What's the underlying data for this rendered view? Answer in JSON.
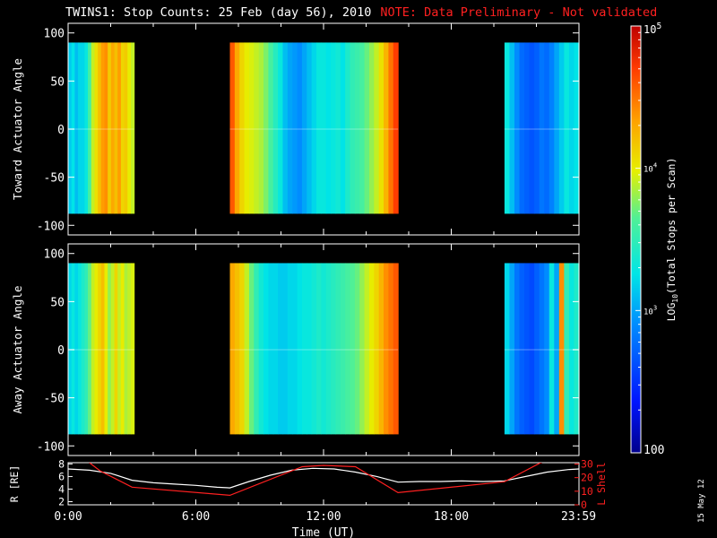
{
  "title": "TWINS1: Stop Counts: 25 Feb (day  56), 2010",
  "note": "NOTE: Data Preliminary - Not validated",
  "stamp": "15 May 12",
  "chart_data": [
    {
      "type": "heatmap",
      "panel": "toward",
      "ylabel": "Toward Actuator Angle",
      "yticks": [
        100,
        50,
        0,
        -50,
        -100
      ],
      "ylim": [
        -110,
        110
      ],
      "angle_range": [
        -88,
        90
      ],
      "xlim_hours": [
        0,
        24
      ],
      "data_windows_hours": [
        [
          0.0,
          3.1
        ],
        [
          7.6,
          15.5
        ],
        [
          20.5,
          24.0
        ]
      ],
      "column_log_counts": [
        3.15,
        3.25,
        3.1,
        3.2,
        3.2,
        3.3,
        3.6,
        3.9,
        4.05,
        4.2,
        4.35,
        4.4,
        4.15,
        4.3,
        4.2,
        4.35,
        4.1,
        4.15,
        4.0,
        3.9,
        4.6,
        4.3,
        4.1,
        4.0,
        3.95,
        3.9,
        3.85,
        3.75,
        3.6,
        3.45,
        3.3,
        3.1,
        3.0,
        2.95,
        2.9,
        3.0,
        3.1,
        3.2,
        3.3,
        3.3,
        3.25,
        3.3,
        3.35,
        3.25,
        3.4,
        3.5,
        3.55,
        3.6,
        3.7,
        3.8,
        3.9,
        4.05,
        4.25,
        4.5,
        4.7,
        3.3,
        3.1,
        2.9,
        2.75,
        2.7,
        2.65,
        2.7,
        2.8,
        2.75,
        2.85,
        3.0,
        3.15,
        3.3,
        3.2,
        3.25
      ]
    },
    {
      "type": "heatmap",
      "panel": "away",
      "ylabel": "Away Actuator Angle",
      "yticks": [
        100,
        50,
        0,
        -50,
        -100
      ],
      "ylim": [
        -110,
        110
      ],
      "angle_range": [
        -88,
        90
      ],
      "xlim_hours": [
        0,
        24
      ],
      "data_windows_hours": [
        [
          0.0,
          3.1
        ],
        [
          7.6,
          15.5
        ],
        [
          20.5,
          24.0
        ]
      ],
      "column_log_counts": [
        3.2,
        3.3,
        3.2,
        3.3,
        3.4,
        3.5,
        3.7,
        3.9,
        4.0,
        4.1,
        4.2,
        4.0,
        3.8,
        3.9,
        4.1,
        3.9,
        4.0,
        3.85,
        3.9,
        3.95,
        4.3,
        4.2,
        4.1,
        3.9,
        3.7,
        3.5,
        3.35,
        3.25,
        3.2,
        3.2,
        3.15,
        3.15,
        3.2,
        3.2,
        3.25,
        3.3,
        3.3,
        3.35,
        3.4,
        3.35,
        3.4,
        3.45,
        3.5,
        3.55,
        3.6,
        3.65,
        3.7,
        3.8,
        3.9,
        4.0,
        4.1,
        4.25,
        4.4,
        4.5,
        4.6,
        3.2,
        3.0,
        2.8,
        2.7,
        2.65,
        2.6,
        2.7,
        2.8,
        2.9,
        3.3,
        3.0,
        4.4,
        3.5,
        3.3,
        3.4
      ]
    },
    {
      "type": "line",
      "panel": "orbit",
      "ylabel_left": "R [RE]",
      "ylabel_right": "L Shell",
      "xlabel": "Time (UT)",
      "xticks": [
        "0:00",
        "6:00",
        "12:00",
        "18:00",
        "23:59"
      ],
      "xtick_hours": [
        0,
        6,
        12,
        18,
        23.98
      ],
      "yticks_left": [
        2,
        4,
        6,
        8
      ],
      "ylim_left": [
        1.5,
        8.2
      ],
      "yticks_right": [
        0,
        10,
        20,
        30
      ],
      "ylim_right": [
        0,
        31
      ],
      "series": [
        {
          "name": "R",
          "color": "#ffffff",
          "x": [
            0,
            1,
            2,
            3,
            4,
            5,
            6,
            7,
            7.6,
            8.5,
            9.5,
            10.5,
            11.5,
            12.5,
            13.5,
            14.5,
            15.5,
            16.5,
            17.5,
            18.5,
            19.5,
            20.5,
            21.5,
            22.5,
            23.5,
            24
          ],
          "y": [
            7.2,
            7.0,
            6.5,
            5.4,
            5.0,
            4.8,
            4.6,
            4.3,
            4.2,
            5.2,
            6.2,
            7.0,
            7.3,
            7.2,
            6.7,
            6.0,
            5.1,
            5.2,
            5.2,
            5.3,
            5.2,
            5.3,
            6.0,
            6.7,
            7.1,
            7.2
          ]
        },
        {
          "name": "L Shell",
          "color": "#ff2020",
          "x": [
            1.0,
            1.5,
            3.0,
            7.6,
            11.0,
            12.0,
            13.5,
            15.5,
            20.5,
            22.2,
            22.6
          ],
          "y": [
            31,
            25,
            13,
            7,
            28,
            29,
            28,
            9,
            17,
            31,
            33
          ]
        }
      ]
    }
  ],
  "colorbar": {
    "label_main": "LOG",
    "label_sub": "10",
    "label_rest": "(Total Stops per Scan)",
    "tick_top": "10",
    "tick_top_exp": "5",
    "tick_mid": "10",
    "tick_mid_exp": "4",
    "tick_low": "10",
    "tick_low_exp": "3",
    "tick_bottom": "100",
    "log_min": 2,
    "log_max": 5
  }
}
